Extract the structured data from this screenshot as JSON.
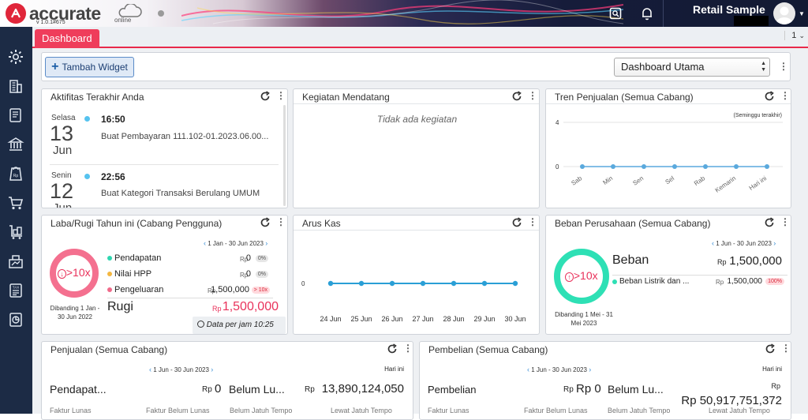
{
  "app": {
    "brand": "accurate",
    "brand_sub": "online",
    "version": "v 1.0.1#675",
    "user_name": "Retail Sample"
  },
  "colors": {
    "accent": "#ef3d5b",
    "sidebar": "#1c2b45",
    "line": "#5aa9dd",
    "pink": "#f06a8a",
    "teal": "#2ee0b5"
  },
  "tabs": {
    "dashboard": "Dashboard",
    "page_count": "1"
  },
  "toolbar": {
    "add_widget_label": "Tambah Widget",
    "dashboard_select": "Dashboard Utama"
  },
  "activity": {
    "title": "Aktifitas Terakhir Anda",
    "items": [
      {
        "day": "Selasa",
        "date": "13",
        "month": "Jun",
        "time": "16:50",
        "desc": "Buat Pembayaran 111.102-01.2023.06.00..."
      },
      {
        "day": "Senin",
        "date": "12",
        "month": "Jun",
        "time": "22:56",
        "desc": "Buat Kategori Transaksi Berulang UMUM"
      }
    ]
  },
  "upcoming": {
    "title": "Kegiatan Mendatang",
    "empty": "Tidak ada kegiatan"
  },
  "sales_trend": {
    "title": "Tren Penjualan (Semua Cabang)",
    "period": "(Seminggu terakhir)"
  },
  "profit": {
    "title": "Laba/Rugi Tahun ini (Cabang Pengguna)",
    "range": "1 Jan - 30 Jun 2023",
    "ring_label": ">10x",
    "compare": "Dibanding 1 Jan - 30 Jun 2022",
    "rows": [
      {
        "name": "Pendapatan",
        "rp": "Rp",
        "value": "0",
        "badge": "0%",
        "color": "#2ed6b0"
      },
      {
        "name": "Nilai HPP",
        "rp": "Rp",
        "value": "0",
        "badge": "0%",
        "color": "#f4b740"
      },
      {
        "name": "Pengeluaran",
        "rp": "Rp",
        "value": "1,500,000",
        "badge": "> 10x",
        "color": "#f06a8a"
      }
    ],
    "result_label": "Rugi",
    "result_rp": "Rp",
    "result_value": "1,500,000",
    "time_note": "Data per jam 10:25"
  },
  "cashflow": {
    "title": "Arus Kas"
  },
  "expense": {
    "title": "Beban Perusahaan (Semua Cabang)",
    "range": "1 Jun - 30 Jun 2023",
    "ring_label": ">10x",
    "compare": "Dibanding 1 Mei - 31 Mei 2023",
    "head": "Beban",
    "rp": "Rp",
    "total": "1,500,000",
    "item_name": "Beban Listrik dan ...",
    "item_rp": "Rp",
    "item_value": "1,500,000",
    "item_badge": "100%"
  },
  "sales": {
    "title": "Penjualan (Semua Cabang)",
    "range": "1 Jun - 30 Jun 2023",
    "today": "Hari ini",
    "label1": "Pendapat...",
    "rp1": "Rp",
    "value1": "0",
    "label2": "Belum Lu...",
    "rp2": "Rp",
    "value2": "13,890,124,050",
    "sub": [
      "Faktur Lunas",
      "Faktur Belum Lunas",
      "Belum Jatuh Tempo",
      "Lewat Jatuh Tempo"
    ]
  },
  "purchase": {
    "title": "Pembelian (Semua Cabang)",
    "range": "1 Jun - 30 Jun 2023",
    "today": "Hari ini",
    "label1": "Pembelian",
    "rp1": "Rp",
    "value1": "Rp 0",
    "label2": "Belum Lu...",
    "rp2": "Rp",
    "value2": "Rp 50,917,751,372",
    "sub": [
      "Faktur Lunas",
      "Faktur Belum Lunas",
      "Belum Jatuh Tempo",
      "Lewat Jatuh Tempo"
    ]
  },
  "chart_data": [
    {
      "type": "line",
      "title": "Tren Penjualan (Semua Cabang)",
      "categories": [
        "Sab",
        "Min",
        "Sen",
        "Sel",
        "Rab",
        "Kemarin",
        "Hari ini"
      ],
      "series": [
        {
          "values": [
            0,
            0,
            0,
            0,
            0,
            0,
            0
          ]
        }
      ],
      "ylim": [
        0,
        4
      ],
      "yticks": [
        "4",
        "0"
      ],
      "grid": true
    },
    {
      "type": "line",
      "title": "Arus Kas",
      "categories": [
        "24 Jun",
        "25 Jun",
        "26 Jun",
        "27 Jun",
        "28 Jun",
        "29 Jun",
        "30 Jun"
      ],
      "series": [
        {
          "values": [
            0,
            0,
            0,
            0,
            0,
            0,
            0
          ]
        }
      ],
      "yticks": [
        "0"
      ],
      "grid": false
    }
  ]
}
